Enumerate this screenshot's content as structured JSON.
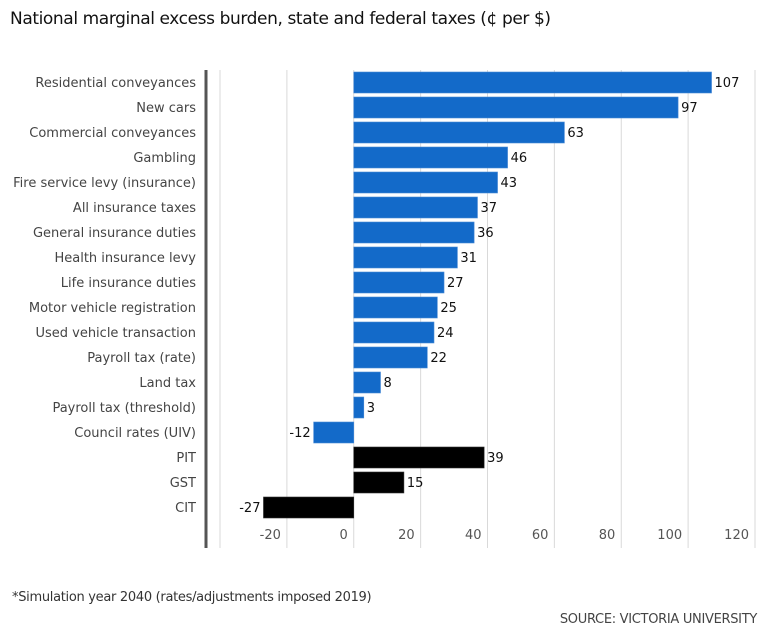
{
  "title": "National marginal excess burden, state and federal taxes (¢ per $)",
  "footnote": "*Simulation year 2040 (rates/adjustments imposed 2019)",
  "source": "SOURCE: VICTORIA UNIVERSITY",
  "colors": {
    "state": "#136ac9",
    "federal": "#000000",
    "grid": "#d9d9d9",
    "axis": "#555555"
  },
  "chart_data": {
    "type": "bar",
    "orientation": "horizontal",
    "title": "National marginal excess burden, state and federal taxes (¢ per $)",
    "xlabel": "",
    "ylabel": "",
    "xlim": [
      -40,
      120
    ],
    "xticks": [
      -20,
      0,
      20,
      40,
      60,
      80,
      100,
      120
    ],
    "grid": true,
    "categories": [
      "Residential conveyances",
      "New cars",
      "Commercial conveyances",
      "Gambling",
      "Fire service levy (insurance)",
      "All insurance taxes",
      "General insurance duties",
      "Health insurance levy",
      "Life insurance duties",
      "Motor vehicle registration",
      "Used vehicle transaction",
      "Payroll tax (rate)",
      "Land tax",
      "Payroll tax (threshold)",
      "Council rates (UIV)",
      "PIT",
      "GST",
      "CIT"
    ],
    "values": [
      107,
      97,
      63,
      46,
      43,
      37,
      36,
      31,
      27,
      25,
      24,
      22,
      8,
      3,
      -12,
      39,
      15,
      -27
    ],
    "groups": [
      "state",
      "state",
      "state",
      "state",
      "state",
      "state",
      "state",
      "state",
      "state",
      "state",
      "state",
      "state",
      "state",
      "state",
      "state",
      "federal",
      "federal",
      "federal"
    ]
  }
}
